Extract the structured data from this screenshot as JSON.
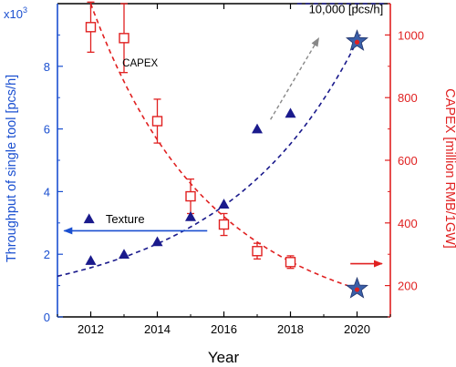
{
  "colors": {
    "left_axis": "#1a4fd0",
    "right_axis": "#e02020",
    "throughput_series": "#1a1a8c",
    "capex_series": "#e02020",
    "star_fill": "#3a5fa8",
    "arrow_gray": "#888888",
    "axis_black": "#000000"
  },
  "icons": {
    "texture_marker": "filled-triangle-icon",
    "capex_marker": "open-square-icon",
    "target_marker": "star-icon"
  },
  "chart_data": {
    "type": "scatter",
    "title": "",
    "xlabel": "Year",
    "ylabel_left": "Throughput of single tool [pcs/h]",
    "ylabel_right": "CAPEX [million RMB/1GW]",
    "xlim": [
      2011,
      2021
    ],
    "ylim_left": [
      0,
      10
    ],
    "ylim_left_unit_label": "x10",
    "ylim_left_unit_exponent": "3",
    "ylim_right": [
      100,
      1100
    ],
    "x_ticks": [
      2012,
      2014,
      2016,
      2018,
      2020
    ],
    "y_left_ticks": [
      0,
      2,
      4,
      6,
      8
    ],
    "y_right_ticks": [
      200,
      400,
      600,
      800,
      1000
    ],
    "grid": false,
    "series": [
      {
        "name": "Texture",
        "axis": "left",
        "marker": "triangle",
        "points": [
          {
            "x": 2012,
            "y": 1.8
          },
          {
            "x": 2013,
            "y": 2.0
          },
          {
            "x": 2014,
            "y": 2.4
          },
          {
            "x": 2015,
            "y": 3.2
          },
          {
            "x": 2016,
            "y": 3.6
          },
          {
            "x": 2017,
            "y": 6.0
          },
          {
            "x": 2018,
            "y": 6.5
          }
        ]
      },
      {
        "name": "CAPEX",
        "axis": "right",
        "marker": "open-square",
        "points": [
          {
            "x": 2012,
            "y": 1025,
            "err": 80
          },
          {
            "x": 2013,
            "y": 990,
            "err": 110
          },
          {
            "x": 2014,
            "y": 725,
            "err": 70
          },
          {
            "x": 2015,
            "y": 485,
            "err": 55
          },
          {
            "x": 2016,
            "y": 395,
            "err": 35
          },
          {
            "x": 2017,
            "y": 310,
            "err": 25
          },
          {
            "x": 2018,
            "y": 275,
            "err": 20
          }
        ]
      }
    ],
    "targets": [
      {
        "axis": "left",
        "x": 2020,
        "y": 8.8
      },
      {
        "axis": "right",
        "x": 2020,
        "y": 190
      }
    ],
    "fits": [
      {
        "name": "throughput-trend",
        "axis": "left",
        "style": "dashed",
        "x_from": 2011,
        "x_to": 2020.1,
        "model": "exponential",
        "points": [
          [
            2011,
            1.3
          ],
          [
            2016,
            3.55
          ],
          [
            2020,
            8.8
          ]
        ]
      },
      {
        "name": "capex-trend",
        "axis": "right",
        "style": "dashed",
        "x_from": 2012,
        "x_to": 2020,
        "model": "exponential-decay",
        "points": [
          [
            2012,
            1100
          ],
          [
            2016,
            420
          ],
          [
            2020,
            190
          ]
        ]
      }
    ],
    "reference_line": {
      "axis": "left",
      "y": 10.0,
      "x_from": 2018.2,
      "x_to": 2020.9,
      "label": "10,000 [pcs/h]"
    },
    "annotations": {
      "capex_label": "CAPEX",
      "texture_label": "Texture",
      "target_label": "10,000 [pcs/h]"
    }
  }
}
